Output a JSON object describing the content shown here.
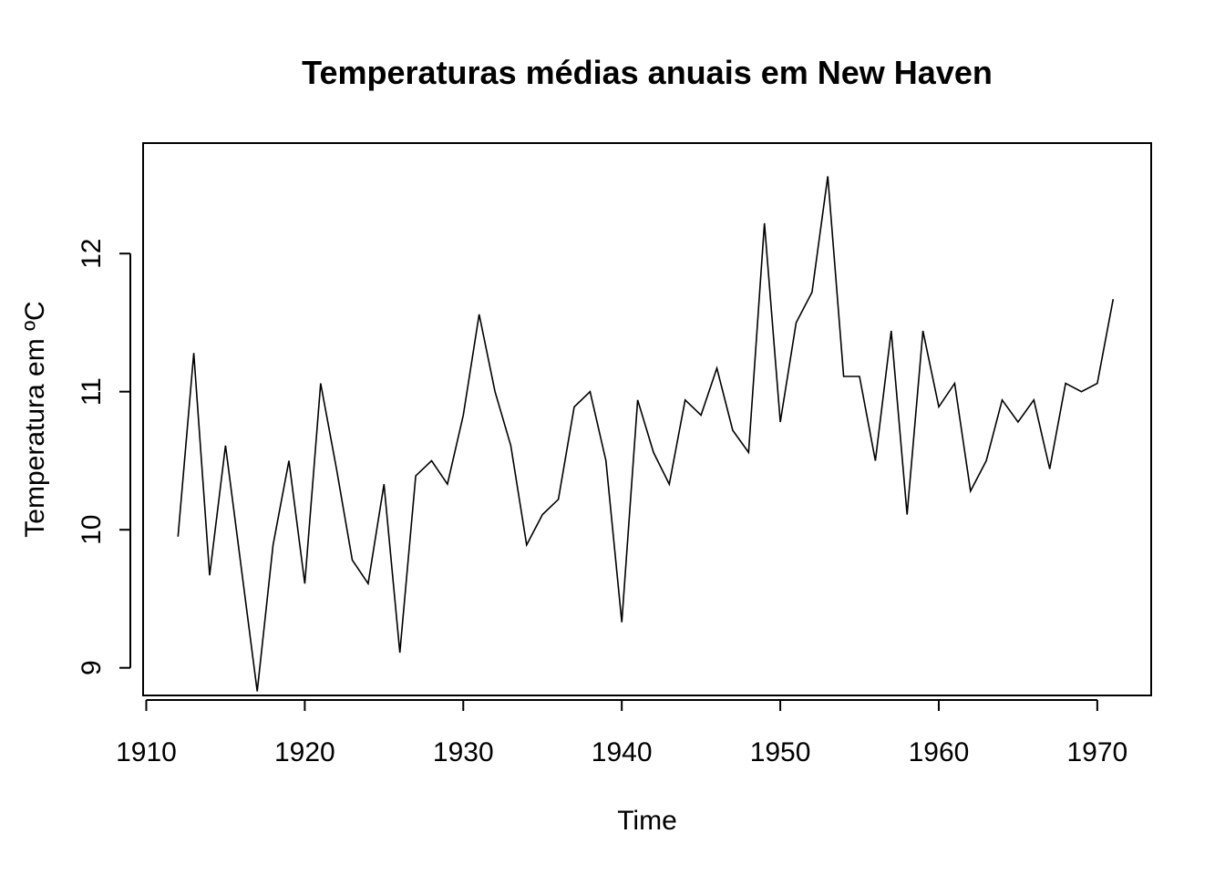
{
  "chart_data": {
    "type": "line",
    "title": "Temperaturas médias anuais em New Haven",
    "xlabel": "Time",
    "ylabel": "Temperatura em ºC",
    "xlim": [
      1909.8,
      1973.4
    ],
    "ylim": [
      8.8,
      12.8
    ],
    "x_ticks": [
      1910,
      1920,
      1930,
      1940,
      1950,
      1960,
      1970
    ],
    "y_ticks": [
      9,
      10,
      11,
      12
    ],
    "grid": false,
    "line_color": "#000000",
    "series": [
      {
        "x": [
          1912,
          1913,
          1914,
          1915,
          1916,
          1917,
          1918,
          1919,
          1920,
          1921,
          1922,
          1923,
          1924,
          1925,
          1926,
          1927,
          1928,
          1929,
          1930,
          1931,
          1932,
          1933,
          1934,
          1935,
          1936,
          1937,
          1938,
          1939,
          1940,
          1941,
          1942,
          1943,
          1944,
          1945,
          1946,
          1947,
          1948,
          1949,
          1950,
          1951,
          1952,
          1953,
          1954,
          1955,
          1956,
          1957,
          1958,
          1959,
          1960,
          1961,
          1962,
          1963,
          1964,
          1965,
          1966,
          1967,
          1968,
          1969,
          1970,
          1971
        ],
        "values": [
          9.95,
          11.28,
          9.67,
          10.61,
          9.72,
          8.83,
          9.89,
          10.5,
          9.61,
          11.06,
          10.44,
          9.78,
          9.61,
          10.33,
          9.11,
          10.39,
          10.5,
          10.33,
          10.83,
          11.56,
          11.0,
          10.61,
          9.89,
          10.11,
          10.22,
          10.89,
          11.0,
          10.5,
          9.33,
          10.94,
          10.56,
          10.33,
          10.94,
          10.83,
          11.17,
          10.72,
          10.56,
          12.22,
          10.78,
          11.5,
          11.72,
          12.56,
          11.11,
          11.11,
          10.5,
          11.44,
          10.11,
          11.44,
          10.89,
          11.06,
          10.28,
          10.5,
          10.94,
          10.78,
          10.94,
          10.44,
          11.06,
          11.0,
          11.06,
          11.67
        ]
      }
    ]
  }
}
